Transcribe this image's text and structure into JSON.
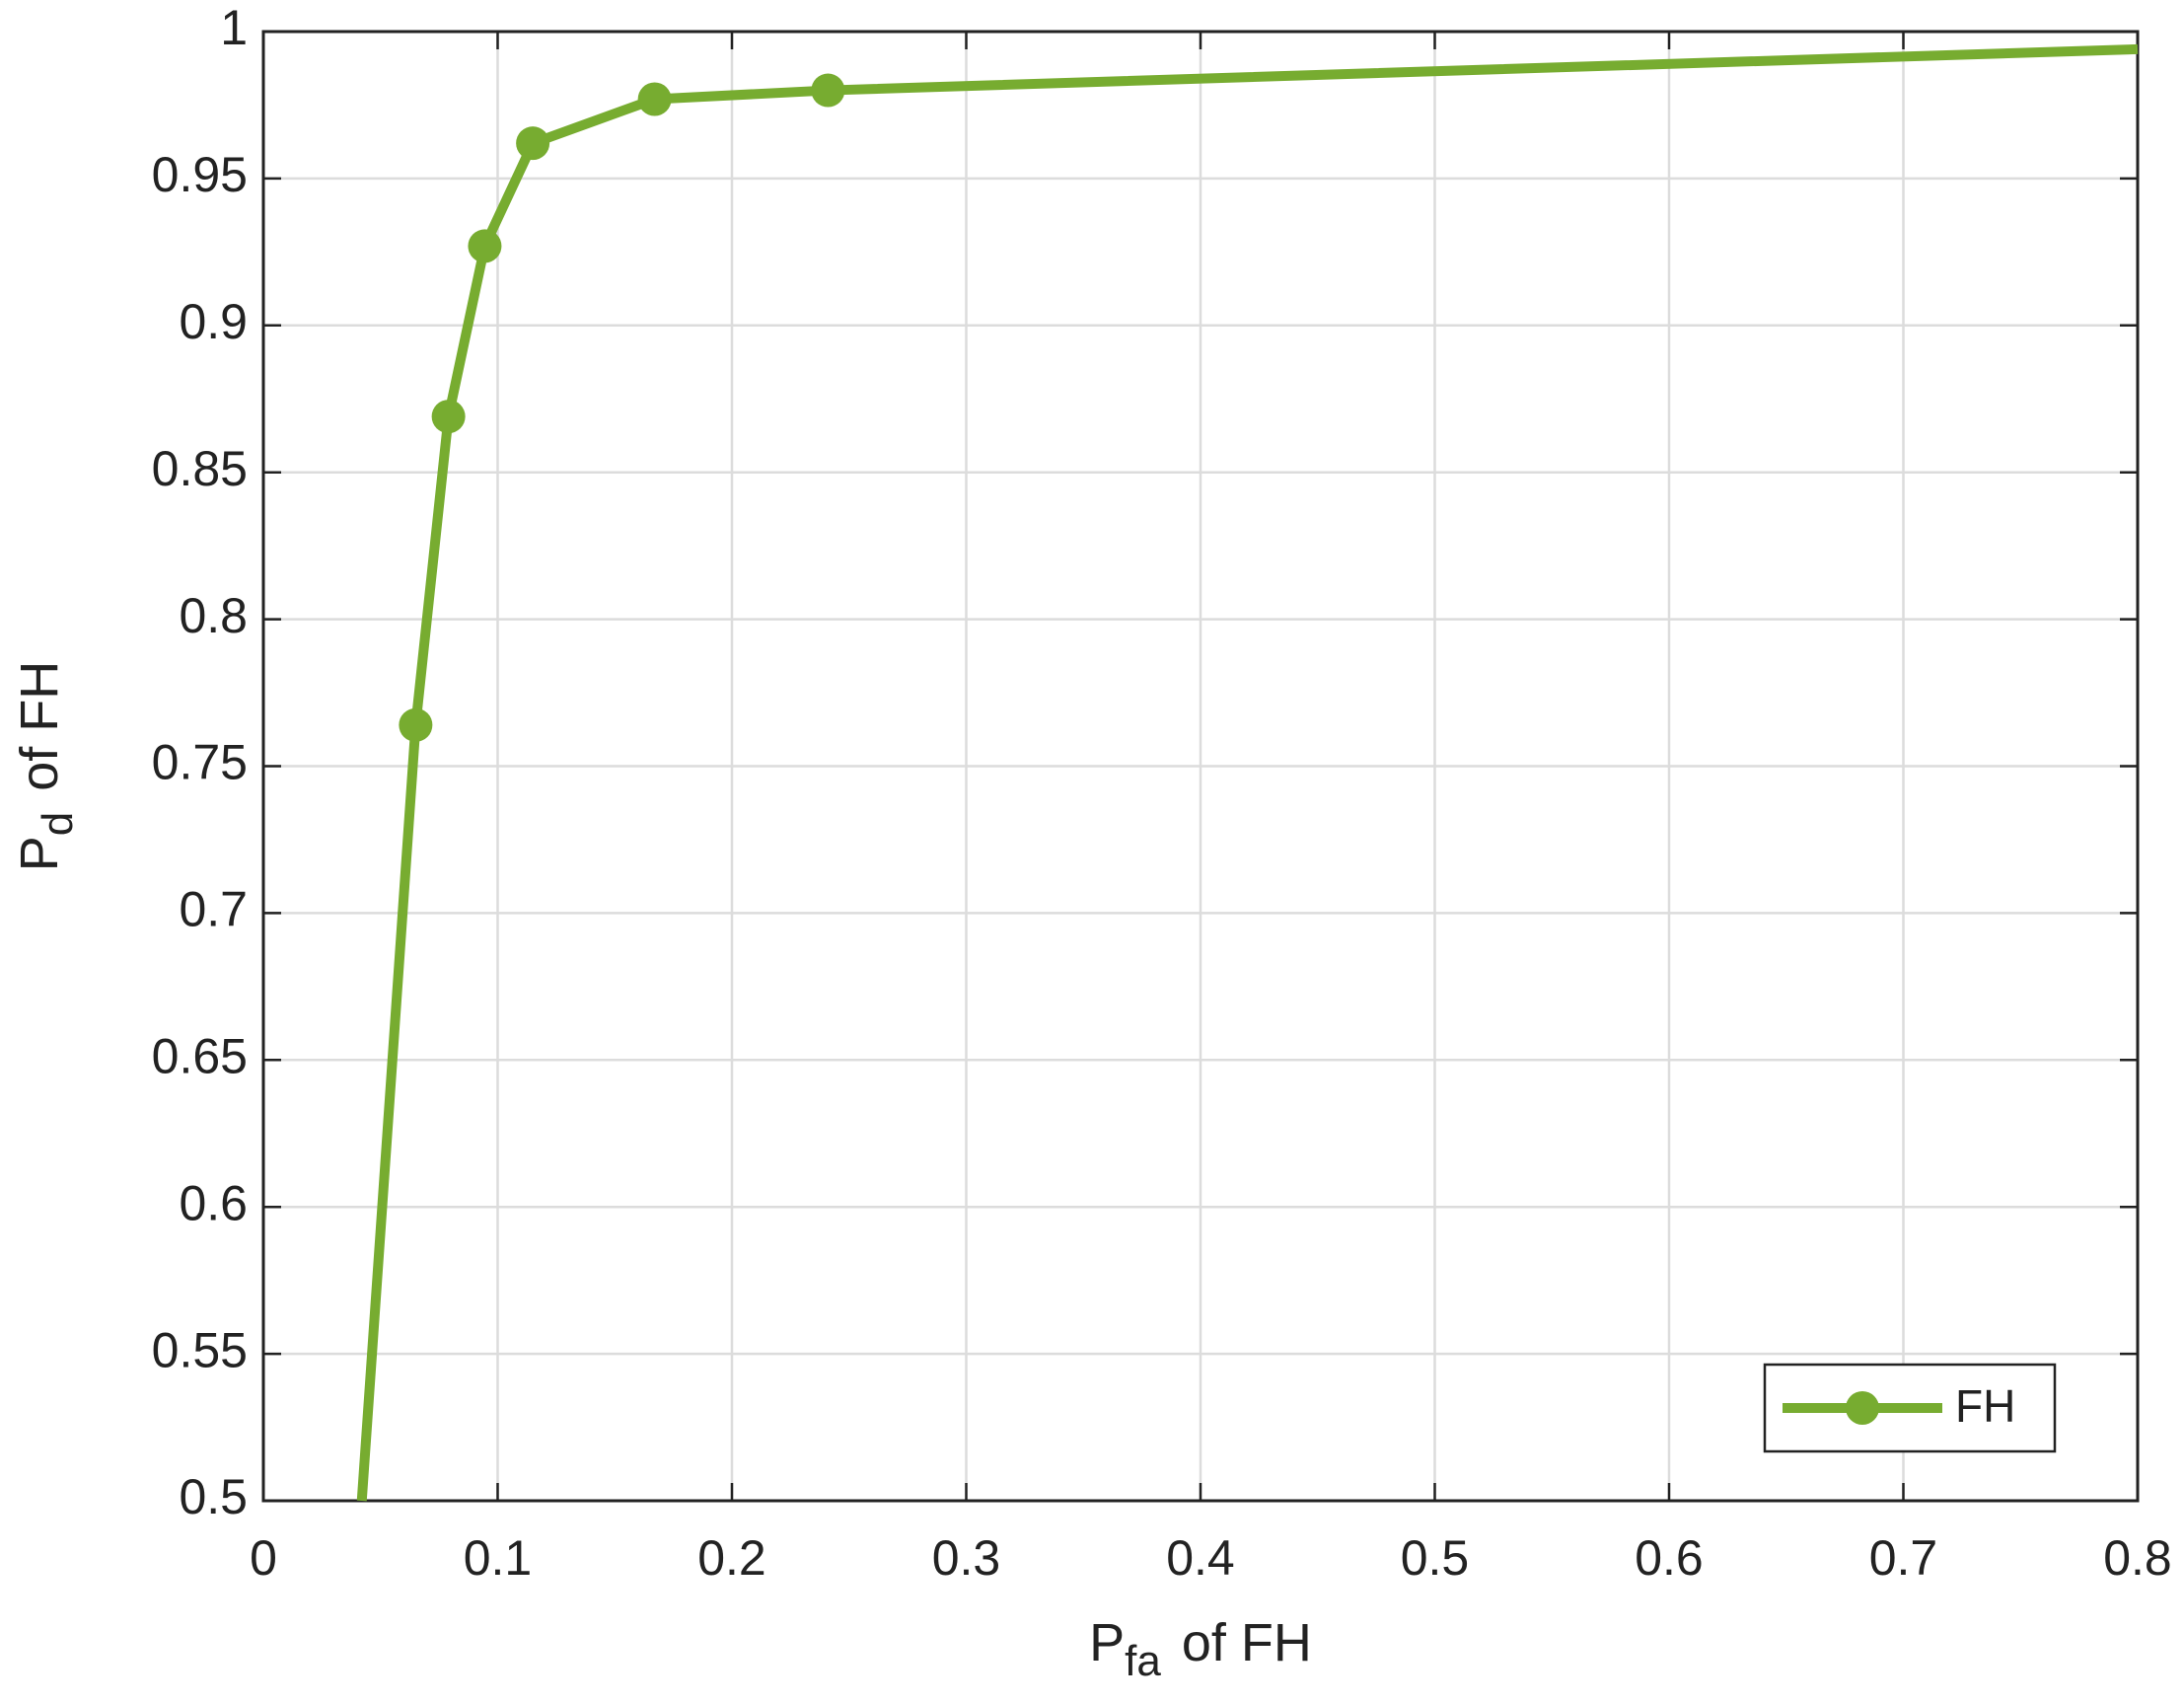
{
  "chart_data": {
    "type": "line",
    "xlabel": [
      "P",
      "fa",
      " of FH"
    ],
    "ylabel": [
      "P",
      "d",
      " of FH"
    ],
    "series": [
      {
        "name": "FH",
        "color": "#77ac30",
        "x": [
          0.042,
          0.065,
          0.079,
          0.0945,
          0.115,
          0.167,
          0.241,
          0.8
        ],
        "values": [
          0.5,
          0.764,
          0.869,
          0.927,
          0.962,
          0.977,
          0.98,
          0.994
        ]
      }
    ],
    "xlim": [
      0,
      0.8
    ],
    "ylim": [
      0.5,
      1
    ],
    "xticks": [
      0,
      0.1,
      0.2,
      0.3,
      0.4,
      0.5,
      0.6,
      0.7,
      0.8
    ],
    "yticks": [
      0.5,
      0.55,
      0.6,
      0.65,
      0.7,
      0.75,
      0.8,
      0.85,
      0.9,
      0.95,
      1
    ],
    "grid": true,
    "legend": "lower right"
  }
}
